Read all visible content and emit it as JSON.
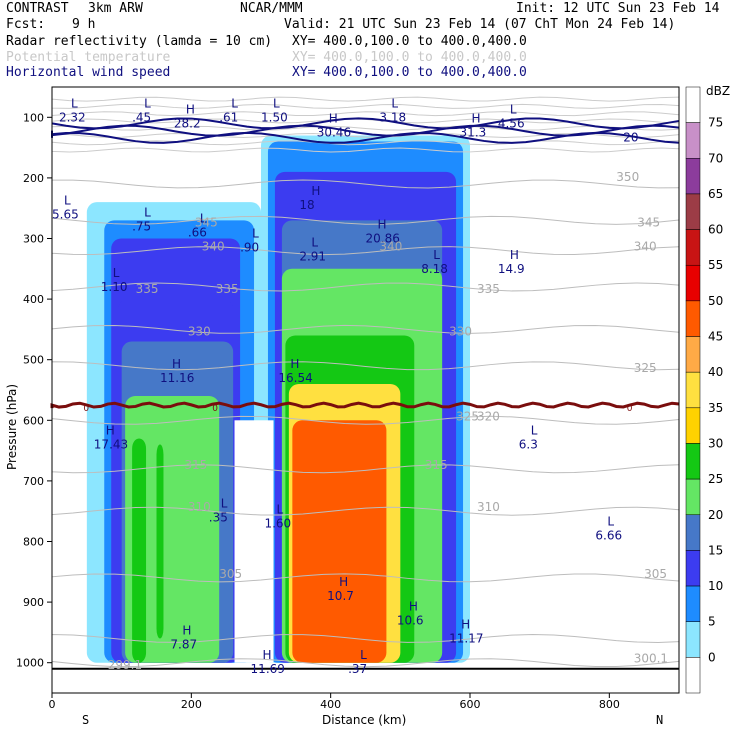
{
  "header": {
    "program": "CONTRAST",
    "model": "3km ARW",
    "org": "NCAR/MMM",
    "init": "Init: 12 UTC Sun 23 Feb 14",
    "fcst_label": "Fcst:",
    "fcst_value": "9 h",
    "valid": "Valid: 21 UTC Sun 23 Feb 14 (07 ChT Mon 24 Feb 14)",
    "fields": [
      {
        "name": "Radar reflectivity (lamda = 10 cm)",
        "xy": "XY= 400.0,100.0 to 400.0,400.0",
        "color": "#000000"
      },
      {
        "name": "Potential temperature",
        "xy": "XY= 400.0,100.0 to 400.0,400.0",
        "color": "#c8c8c8"
      },
      {
        "name": "Horizontal wind speed",
        "xy": "XY= 400.0,100.0 to 400.0,400.0",
        "color": "#101080"
      }
    ]
  },
  "colorbar": {
    "unit": "dBZ",
    "levels": [
      "75",
      "70",
      "65",
      "60",
      "55",
      "50",
      "45",
      "40",
      "35",
      "30",
      "25",
      "20",
      "15",
      "10",
      "5",
      "0"
    ],
    "colors": [
      "#ffffff",
      "#c890c8",
      "#8c3c9c",
      "#9c3c46",
      "#c81414",
      "#e80000",
      "#ff5a00",
      "#ffaa46",
      "#ffe040",
      "#ffd200",
      "#14c814",
      "#64e664",
      "#4678c8",
      "#3c3cf0",
      "#1e8cff",
      "#8ce6ff",
      "#ffffff"
    ]
  },
  "chart_data": {
    "type": "heatmap",
    "title": "",
    "xlabel": "Distance (km)",
    "ylabel": "Pressure (hPa)",
    "xlim": [
      0,
      900
    ],
    "ylim": [
      1050,
      50
    ],
    "x_ticks": [
      0,
      200,
      400,
      600,
      800
    ],
    "y_ticks": [
      100,
      200,
      300,
      400,
      500,
      600,
      700,
      800,
      900,
      1000
    ],
    "x_end_labels": {
      "left": "S",
      "right": "N"
    },
    "reflectivity_cells": [
      {
        "x": [
          50,
          300
        ],
        "p": [
          1000,
          240
        ],
        "dbz": 5
      },
      {
        "x": [
          75,
          290
        ],
        "p": [
          1000,
          270
        ],
        "dbz": 10
      },
      {
        "x": [
          85,
          270
        ],
        "p": [
          1000,
          300
        ],
        "dbz": 15
      },
      {
        "x": [
          95,
          260
        ],
        "p": [
          1000,
          400
        ],
        "dbz": 20
      },
      {
        "x": [
          100,
          260
        ],
        "p": [
          1000,
          470
        ],
        "dbz": 25
      },
      {
        "x": [
          105,
          240
        ],
        "p": [
          1000,
          560
        ],
        "dbz": 30
      },
      {
        "x": [
          115,
          135
        ],
        "p": [
          1000,
          630
        ],
        "dbz": 35
      },
      {
        "x": [
          150,
          160
        ],
        "p": [
          960,
          640
        ],
        "dbz": 35
      },
      {
        "x": [
          300,
          600
        ],
        "p": [
          1000,
          130
        ],
        "dbz": 5
      },
      {
        "x": [
          310,
          590
        ],
        "p": [
          1000,
          140
        ],
        "dbz": 10
      },
      {
        "x": [
          320,
          580
        ],
        "p": [
          1000,
          190
        ],
        "dbz": 15
      },
      {
        "x": [
          330,
          560
        ],
        "p": [
          1000,
          270
        ],
        "dbz": 25
      },
      {
        "x": [
          330,
          560
        ],
        "p": [
          1000,
          350
        ],
        "dbz": 30
      },
      {
        "x": [
          335,
          520
        ],
        "p": [
          1000,
          460
        ],
        "dbz": 35
      },
      {
        "x": [
          340,
          500
        ],
        "p": [
          1000,
          540
        ],
        "dbz": 40
      },
      {
        "x": [
          345,
          480
        ],
        "p": [
          1000,
          600
        ],
        "dbz": 45
      }
    ],
    "zero_isotherm_label": "0",
    "theta_contours_K": [
      295,
      300,
      305,
      310,
      315,
      320,
      325,
      330,
      335,
      340,
      345,
      350
    ],
    "theta_labels": [
      "299.1",
      "300.1",
      "305",
      "305",
      "310",
      "310",
      "315",
      "315",
      "320",
      "325",
      "325",
      "330",
      "330",
      "335",
      "335",
      "335",
      "340",
      "340",
      "340",
      "345",
      "345",
      "350"
    ],
    "wind_labels": [
      "20"
    ],
    "extrema": [
      {
        "kind": "L",
        "value": "2.32"
      },
      {
        "kind": "L",
        "value": ".45"
      },
      {
        "kind": "H",
        "value": "28.2"
      },
      {
        "kind": "L",
        "value": ".61"
      },
      {
        "kind": "L",
        "value": "1.50"
      },
      {
        "kind": "L",
        "value": "3.18"
      },
      {
        "kind": "H",
        "value": "30.46"
      },
      {
        "kind": "H",
        "value": "31.3"
      },
      {
        "kind": "L",
        "value": "4.56"
      },
      {
        "kind": "L",
        "value": "5.65"
      },
      {
        "kind": "L",
        "value": ".75"
      },
      {
        "kind": "L",
        "value": ".66"
      },
      {
        "kind": "L",
        "value": ".90"
      },
      {
        "kind": "H",
        "value": "18"
      },
      {
        "kind": "L",
        "value": "2.91"
      },
      {
        "kind": "H",
        "value": "20.86"
      },
      {
        "kind": "L",
        "value": "8.18"
      },
      {
        "kind": "H",
        "value": "14.9"
      },
      {
        "kind": "L",
        "value": "1.10"
      },
      {
        "kind": "H",
        "value": "11.16"
      },
      {
        "kind": "H",
        "value": "16.54"
      },
      {
        "kind": "H",
        "value": "17.43"
      },
      {
        "kind": "L",
        "value": "6.3"
      },
      {
        "kind": "L",
        "value": ".35"
      },
      {
        "kind": "L",
        "value": "1.60"
      },
      {
        "kind": "L",
        "value": "6.66"
      },
      {
        "kind": "H",
        "value": "10.7"
      },
      {
        "kind": "H",
        "value": "10.6"
      },
      {
        "kind": "H",
        "value": "11.17"
      },
      {
        "kind": "H",
        "value": "7.87"
      },
      {
        "kind": "H",
        "value": "11.69"
      },
      {
        "kind": "L",
        "value": ".37"
      }
    ],
    "legend": "right colorbar",
    "grid": false
  }
}
